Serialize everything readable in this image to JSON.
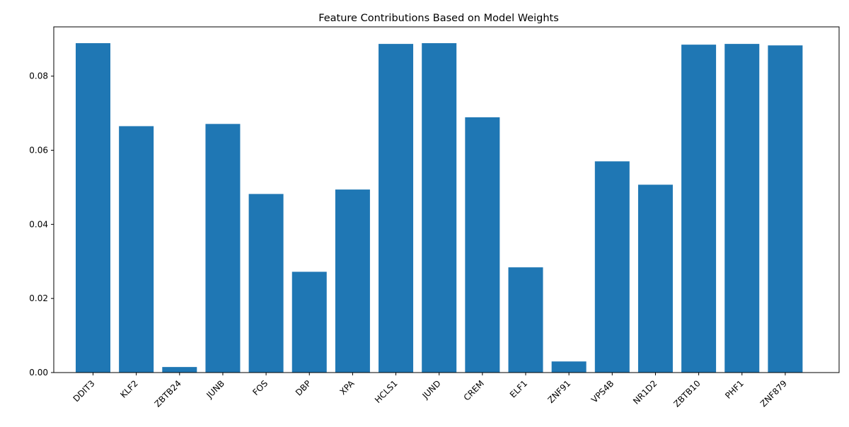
{
  "chart_data": {
    "type": "bar",
    "title": "Feature Contributions Based on Model Weights",
    "xlabel": "",
    "ylabel": "",
    "categories": [
      "DDIT3",
      "KLF2",
      "ZBTB24",
      "JUNB",
      "FOS",
      "DBP",
      "XPA",
      "HCLS1",
      "JUND",
      "CREM",
      "ELF1",
      "ZNF91",
      "VPS4B",
      "NR1D2",
      "ZBTB10",
      "PHF1",
      "ZNF879"
    ],
    "values": [
      0.0889,
      0.0665,
      0.0015,
      0.0671,
      0.0482,
      0.0272,
      0.0494,
      0.0887,
      0.0889,
      0.0689,
      0.0284,
      0.003,
      0.057,
      0.0507,
      0.0885,
      0.0887,
      0.0883
    ],
    "ylim": [
      0,
      0.0933
    ],
    "yticks": [
      0.0,
      0.02,
      0.04,
      0.06,
      0.08
    ],
    "ytick_labels": [
      "0.00",
      "0.02",
      "0.04",
      "0.06",
      "0.08"
    ],
    "bar_color": "#1f77b4",
    "grid": false,
    "legend": "none"
  }
}
